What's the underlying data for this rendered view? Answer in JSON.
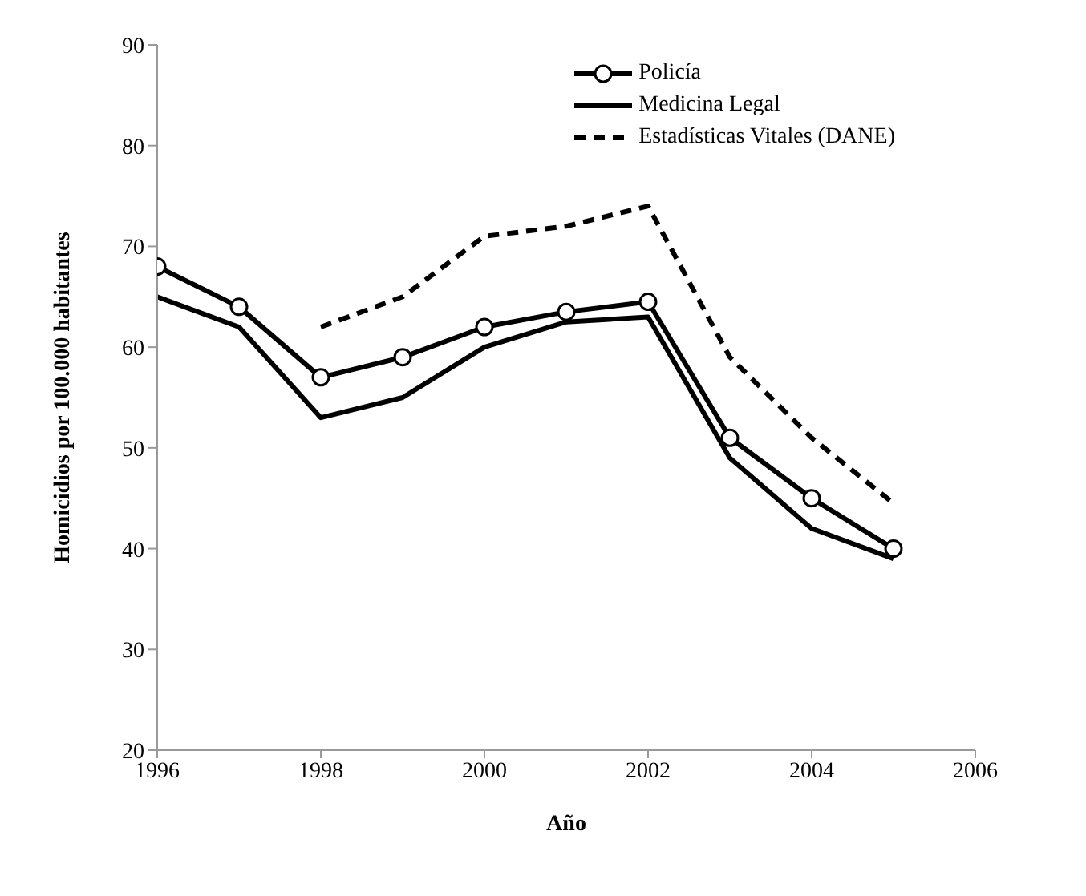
{
  "chart_data": {
    "type": "line",
    "xlabel": "Año",
    "ylabel": "Homicidios por 100.000 habitantes",
    "x": [
      1996,
      1997,
      1998,
      1999,
      2000,
      2001,
      2002,
      2003,
      2004,
      2005
    ],
    "series": [
      {
        "name": "Policía",
        "color": "#000000",
        "marker": "circle",
        "line_style": "solid",
        "values": [
          68,
          64,
          57,
          59,
          62,
          63.5,
          64.5,
          51,
          45,
          40
        ]
      },
      {
        "name": "Medicina Legal",
        "color": "#000000",
        "marker": "none",
        "line_style": "solid",
        "values": [
          65,
          62,
          53,
          55,
          60,
          62.5,
          63,
          49,
          42,
          39
        ]
      },
      {
        "name": "Estadísticas Vitales (DANE)",
        "color": "#000000",
        "marker": "none",
        "line_style": "dashed",
        "values": [
          null,
          null,
          62,
          65,
          71,
          72,
          74,
          59,
          51,
          44.5
        ]
      }
    ],
    "xlim": [
      1996,
      2006
    ],
    "xticks": [
      1996,
      1998,
      2000,
      2002,
      2004,
      2006
    ],
    "ylim": [
      20,
      90
    ],
    "yticks": [
      20,
      30,
      40,
      50,
      60,
      70,
      80,
      90
    ],
    "grid": false,
    "legend": "top right"
  }
}
